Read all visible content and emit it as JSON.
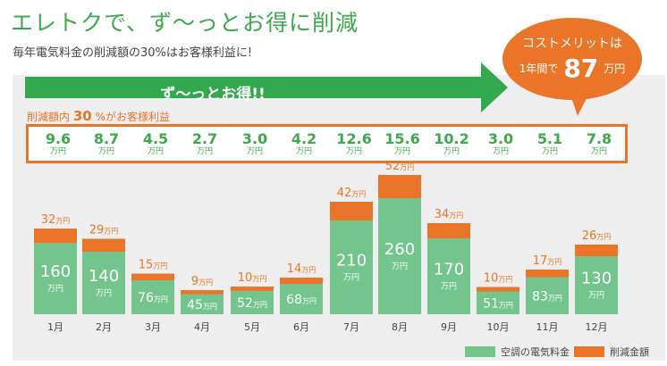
{
  "title": "エレトクで、ず〜っとお得に削減",
  "subtitle": "毎年電気料金の削減額の30%はお客様利益に!",
  "arrow_label": "ず〜っとお得!!",
  "savings_note": {
    "prefix": "削減額内",
    "pct": "30",
    "suffix": "%がお客様利益"
  },
  "bubble": {
    "line1": "コストメリットは",
    "line2_prefix": "1年間で",
    "amount": "87",
    "unit": "万円"
  },
  "customer_savings": [
    {
      "value": "9.6",
      "unit": "万円"
    },
    {
      "value": "8.7",
      "unit": "万円"
    },
    {
      "value": "4.5",
      "unit": "万円"
    },
    {
      "value": "2.7",
      "unit": "万円"
    },
    {
      "value": "3.0",
      "unit": "万円"
    },
    {
      "value": "4.2",
      "unit": "万円"
    },
    {
      "value": "12.6",
      "unit": "万円"
    },
    {
      "value": "15.6",
      "unit": "万円"
    },
    {
      "value": "10.2",
      "unit": "万円"
    },
    {
      "value": "3.0",
      "unit": "万円"
    },
    {
      "value": "5.1",
      "unit": "万円"
    },
    {
      "value": "7.8",
      "unit": "万円"
    }
  ],
  "colors": {
    "green": "#74c48d",
    "orange": "#ea7428",
    "title_green": "#3fa84c",
    "arrow_green": "#33a94f"
  },
  "chart_data": {
    "type": "bar",
    "stacked": true,
    "categories": [
      "1月",
      "2月",
      "3月",
      "4月",
      "5月",
      "6月",
      "7月",
      "8月",
      "9月",
      "10月",
      "11月",
      "12月"
    ],
    "series": [
      {
        "name": "空調の電気料金",
        "values": [
          160,
          140,
          76,
          45,
          52,
          68,
          210,
          260,
          170,
          51,
          83,
          130
        ],
        "color": "#74c48d"
      },
      {
        "name": "削減金額",
        "values": [
          32,
          29,
          15,
          9,
          10,
          14,
          42,
          52,
          34,
          10,
          17,
          26
        ],
        "color": "#ea7428"
      }
    ],
    "value_unit": "万円",
    "legend_position": "bottom-right"
  }
}
